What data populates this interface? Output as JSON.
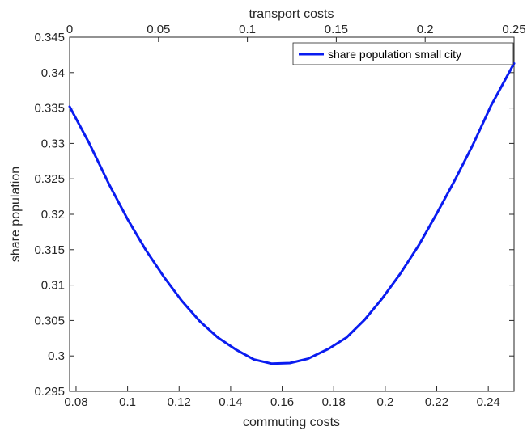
{
  "chart_data": {
    "type": "line",
    "xlabel": "commuting costs",
    "x2label": "transport costs",
    "ylabel": "share population",
    "xlim": [
      0.0775,
      0.25
    ],
    "x2lim": [
      0,
      0.25
    ],
    "ylim": [
      0.295,
      0.345
    ],
    "xticks": [
      0.08,
      0.1,
      0.12,
      0.14,
      0.16,
      0.18,
      0.2,
      0.22,
      0.24
    ],
    "xtick_labels": [
      "0.08",
      "0.1",
      "0.12",
      "0.14",
      "0.16",
      "0.18",
      "0.2",
      "0.22",
      "0.24"
    ],
    "x2ticks": [
      0,
      0.05,
      0.1,
      0.15,
      0.2,
      0.25
    ],
    "x2tick_labels": [
      "0",
      "0.05",
      "0.1",
      "0.15",
      "0.2",
      "0.25"
    ],
    "yticks": [
      0.295,
      0.3,
      0.305,
      0.31,
      0.315,
      0.32,
      0.325,
      0.33,
      0.335,
      0.34,
      0.345
    ],
    "ytick_labels": [
      "0.295",
      "0.3",
      "0.305",
      "0.31",
      "0.315",
      "0.32",
      "0.325",
      "0.33",
      "0.335",
      "0.34",
      "0.345"
    ],
    "grid": false,
    "legend_position": "top-right",
    "series": [
      {
        "name": "share population small city",
        "color": "#0a1cf0",
        "x": [
          0.0775,
          0.085,
          0.093,
          0.1,
          0.107,
          0.114,
          0.121,
          0.128,
          0.135,
          0.142,
          0.149,
          0.156,
          0.163,
          0.17,
          0.178,
          0.185,
          0.192,
          0.199,
          0.206,
          0.213,
          0.22,
          0.227,
          0.234,
          0.241,
          0.25
        ],
        "y": [
          0.3352,
          0.3301,
          0.3241,
          0.3193,
          0.315,
          0.3112,
          0.3078,
          0.3049,
          0.3026,
          0.3009,
          0.2995,
          0.2989,
          0.299,
          0.2996,
          0.301,
          0.3026,
          0.3051,
          0.3082,
          0.3117,
          0.3156,
          0.3201,
          0.3248,
          0.3298,
          0.3353,
          0.3413
        ]
      }
    ]
  }
}
